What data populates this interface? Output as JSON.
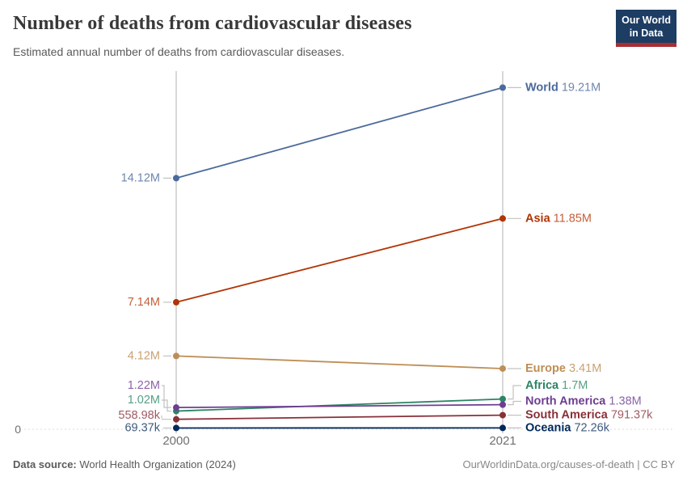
{
  "header": {
    "title": "Number of deaths from cardiovascular diseases",
    "subtitle": "Estimated annual number of deaths from cardiovascular diseases.",
    "logo": {
      "line1": "Our World",
      "line2": "in Data",
      "bg_color": "#1d3d63",
      "bar_color": "#a92e34"
    }
  },
  "footer": {
    "source_label": "Data source:",
    "source_text": " World Health Organization (2024)",
    "attribution": "OurWorldinData.org/causes-of-death | CC BY"
  },
  "chart_data": {
    "type": "line",
    "subtype": "slope",
    "title": "Number of deaths from cardiovascular diseases",
    "x": [
      2000,
      2021
    ],
    "x_tick_labels": [
      "2000",
      "2021"
    ],
    "y_axis": {
      "zero_label": "0",
      "min": 0,
      "max": 20000000,
      "gridlines": "zero-dashed-only"
    },
    "legend_position": "inline-end-labels",
    "series": [
      {
        "name": "World",
        "color": "#4C6A9C",
        "value_color": "#6E87AF",
        "values": [
          14120000,
          19210000
        ],
        "value_labels": [
          "14.12M",
          "19.21M"
        ]
      },
      {
        "name": "Asia",
        "color": "#B13507",
        "value_color": "#C4603A",
        "values": [
          7140000,
          11850000
        ],
        "value_labels": [
          "7.14M",
          "11.85M"
        ]
      },
      {
        "name": "Europe",
        "color": "#BE8E55",
        "value_color": "#C9A172",
        "values": [
          4120000,
          3410000
        ],
        "value_labels": [
          "4.12M",
          "3.41M"
        ]
      },
      {
        "name": "Africa",
        "color": "#2C8465",
        "value_color": "#579F85",
        "values": [
          1020000,
          1700000
        ],
        "value_labels": [
          "1.02M",
          "1.7M"
        ]
      },
      {
        "name": "North America",
        "color": "#6D3E91",
        "value_color": "#8A64A9",
        "values": [
          1220000,
          1380000
        ],
        "value_labels": [
          "1.22M",
          "1.38M"
        ]
      },
      {
        "name": "South America",
        "color": "#883039",
        "value_color": "#A05C63",
        "values": [
          558980,
          791370
        ],
        "value_labels": [
          "558.98k",
          "791.37k"
        ]
      },
      {
        "name": "Oceania",
        "color": "#00295B",
        "value_color": "#3D5980",
        "values": [
          69370,
          72260
        ],
        "value_labels": [
          "69.37k",
          "72.26k"
        ]
      }
    ]
  }
}
